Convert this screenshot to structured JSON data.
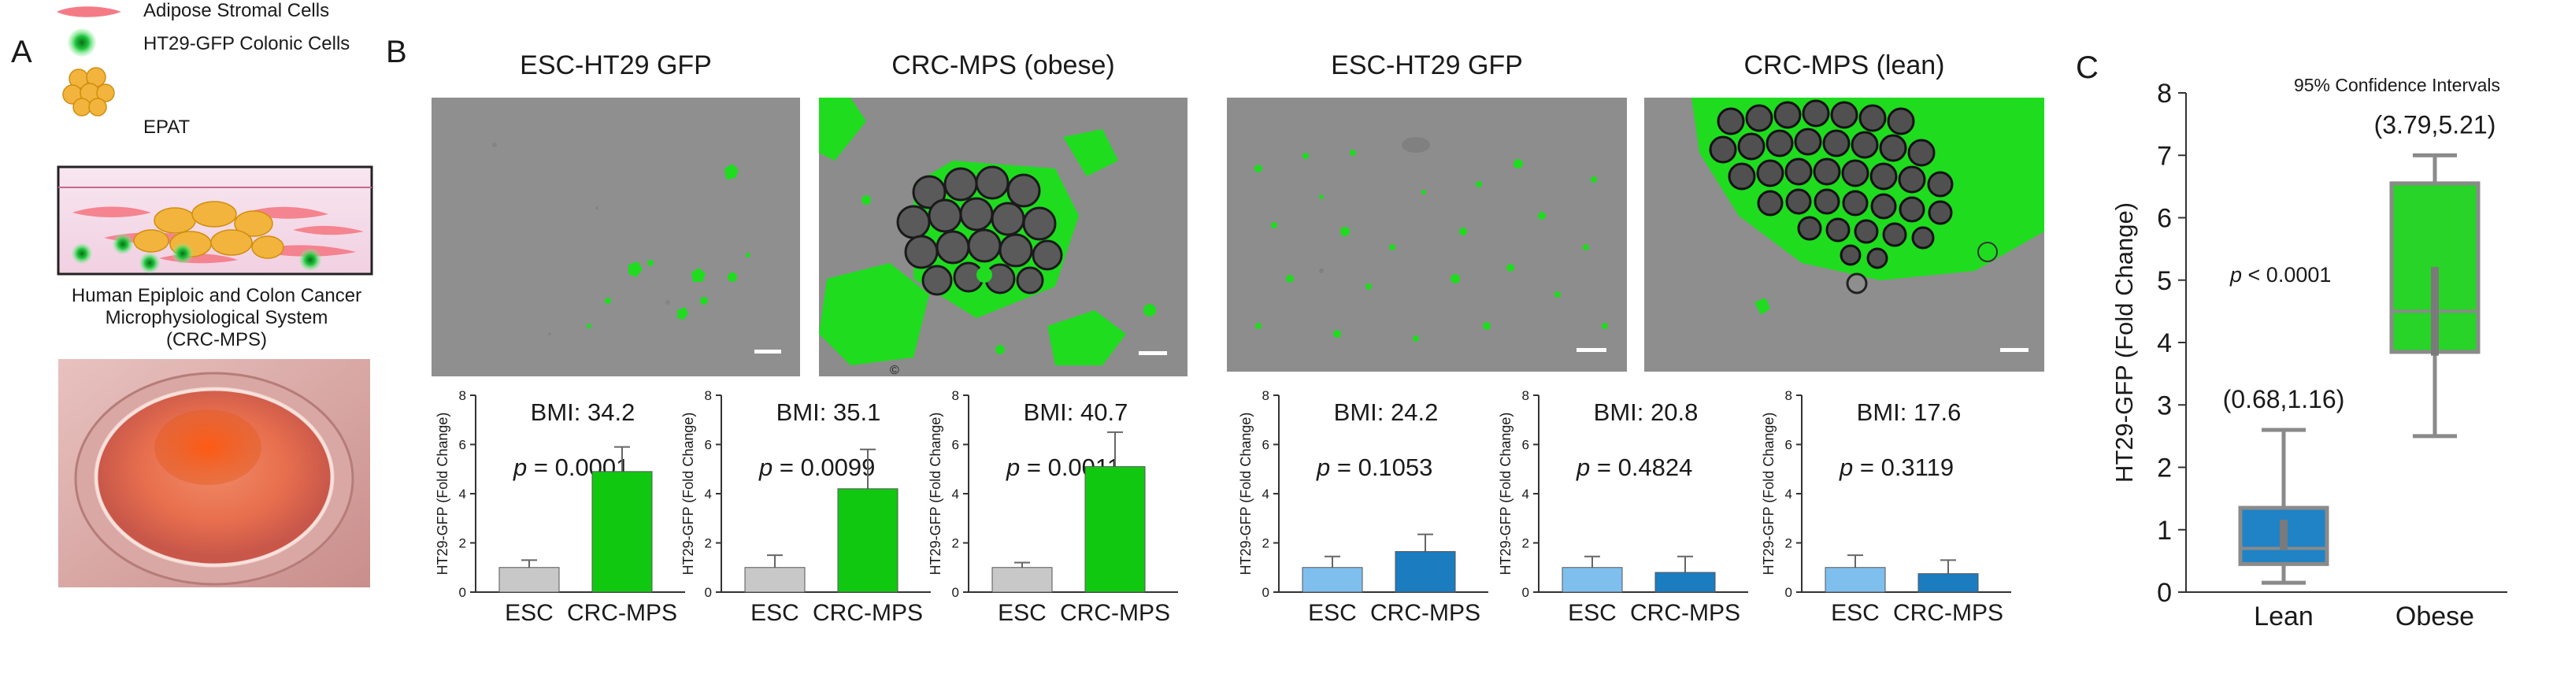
{
  "panels": {
    "a": {
      "letter": "A",
      "legend": [
        {
          "label": "Adipose Stromal Cells",
          "icon": "stromal-cell-icon"
        },
        {
          "label": "HT29-GFP Colonic Cells",
          "icon": "gfp-cell-icon"
        },
        {
          "label": "EPAT",
          "icon": "epat-icon"
        }
      ],
      "caption_lines": [
        "Human Epiploic and Colon Cancer",
        "Microphysiological System",
        "(CRC-MPS)"
      ]
    },
    "b": {
      "letter": "B",
      "image_titles": [
        "ESC-HT29 GFP",
        "CRC-MPS (obese)",
        "ESC-HT29 GFP",
        "CRC-MPS (lean)"
      ],
      "stray_mark": "©"
    },
    "c": {
      "letter": "C"
    }
  },
  "colors": {
    "grey_bar": "#c8c8c8",
    "green_bar": "#11c811",
    "light_blue_bar": "#7fbfee",
    "blue_bar": "#1c7cc0",
    "gfp_green": "#1fdc1f",
    "box_blue": "#1f83c6",
    "box_green": "#27d427",
    "box_edge": "#8a8a8a"
  },
  "chart_data": [
    {
      "type": "bar",
      "id": "b1",
      "annotation": "BMI: 34.2",
      "p_value": "= 0.0001",
      "categories": [
        "ESC",
        "CRC-MPS"
      ],
      "values": [
        1.0,
        4.9
      ],
      "errors": [
        0.3,
        1.0
      ],
      "ylabel": "HT29-GFP  (Fold Change)",
      "ylim": [
        0,
        8
      ],
      "yticks": [
        0,
        2,
        4,
        6,
        8
      ],
      "colors": [
        "#c8c8c8",
        "#11c811"
      ]
    },
    {
      "type": "bar",
      "id": "b2",
      "annotation": "BMI: 35.1",
      "p_value": "= 0.0099",
      "categories": [
        "ESC",
        "CRC-MPS"
      ],
      "values": [
        1.0,
        4.2
      ],
      "errors": [
        0.5,
        1.6
      ],
      "ylabel": "HT29-GFP  (Fold Change)",
      "ylim": [
        0,
        8
      ],
      "yticks": [
        0,
        2,
        4,
        6,
        8
      ],
      "colors": [
        "#c8c8c8",
        "#11c811"
      ]
    },
    {
      "type": "bar",
      "id": "b3",
      "annotation": "BMI: 40.7",
      "p_value": "= 0.0011",
      "categories": [
        "ESC",
        "CRC-MPS"
      ],
      "values": [
        1.0,
        5.1
      ],
      "errors": [
        0.2,
        1.4
      ],
      "ylabel": "HT29-GFP  (Fold Change)",
      "ylim": [
        0,
        8
      ],
      "yticks": [
        0,
        2,
        4,
        6,
        8
      ],
      "colors": [
        "#c8c8c8",
        "#11c811"
      ]
    },
    {
      "type": "bar",
      "id": "b4",
      "annotation": "BMI: 24.2",
      "p_value": "= 0.1053",
      "categories": [
        "ESC",
        "CRC-MPS"
      ],
      "values": [
        1.0,
        1.65
      ],
      "errors": [
        0.45,
        0.7
      ],
      "ylabel": "HT29-GFP  (Fold Change)",
      "ylim": [
        0,
        8
      ],
      "yticks": [
        0,
        2,
        4,
        6,
        8
      ],
      "colors": [
        "#7fbfee",
        "#1c7cc0"
      ]
    },
    {
      "type": "bar",
      "id": "b5",
      "annotation": "BMI: 20.8",
      "p_value": "= 0.4824",
      "categories": [
        "ESC",
        "CRC-MPS"
      ],
      "values": [
        1.0,
        0.8
      ],
      "errors": [
        0.45,
        0.65
      ],
      "ylabel": "HT29-GFP  (Fold Change)",
      "ylim": [
        0,
        8
      ],
      "yticks": [
        0,
        2,
        4,
        6,
        8
      ],
      "colors": [
        "#7fbfee",
        "#1c7cc0"
      ]
    },
    {
      "type": "bar",
      "id": "b6",
      "annotation": "BMI: 17.6",
      "p_value": "= 0.3119",
      "categories": [
        "ESC",
        "CRC-MPS"
      ],
      "values": [
        1.0,
        0.75
      ],
      "errors": [
        0.5,
        0.55
      ],
      "ylabel": "HT29-GFP  (Fold Change)",
      "ylim": [
        0,
        8
      ],
      "yticks": [
        0,
        2,
        4,
        6,
        8
      ],
      "colors": [
        "#7fbfee",
        "#1c7cc0"
      ]
    },
    {
      "type": "box",
      "id": "c",
      "title": "95% Confidence Intervals",
      "ylabel": "HT29-GFP (Fold Change)",
      "ylim": [
        0,
        8
      ],
      "yticks": [
        0,
        1,
        2,
        3,
        4,
        5,
        6,
        7,
        8
      ],
      "p_annotation": "< 0.0001",
      "categories": [
        "Lean",
        "Obese"
      ],
      "boxes": [
        {
          "name": "Lean",
          "min": 0.15,
          "q1": 0.45,
          "median": 0.7,
          "q3": 1.35,
          "max": 2.6,
          "ci_low": 0.68,
          "ci_high": 1.16,
          "ci_label": "(0.68,1.16)",
          "color": "#1f83c6"
        },
        {
          "name": "Obese",
          "min": 2.5,
          "q1": 3.85,
          "median": 4.5,
          "q3": 6.55,
          "max": 7.0,
          "ci_low": 3.79,
          "ci_high": 5.21,
          "ci_label": "(3.79,5.21)",
          "color": "#27d427"
        }
      ]
    }
  ]
}
